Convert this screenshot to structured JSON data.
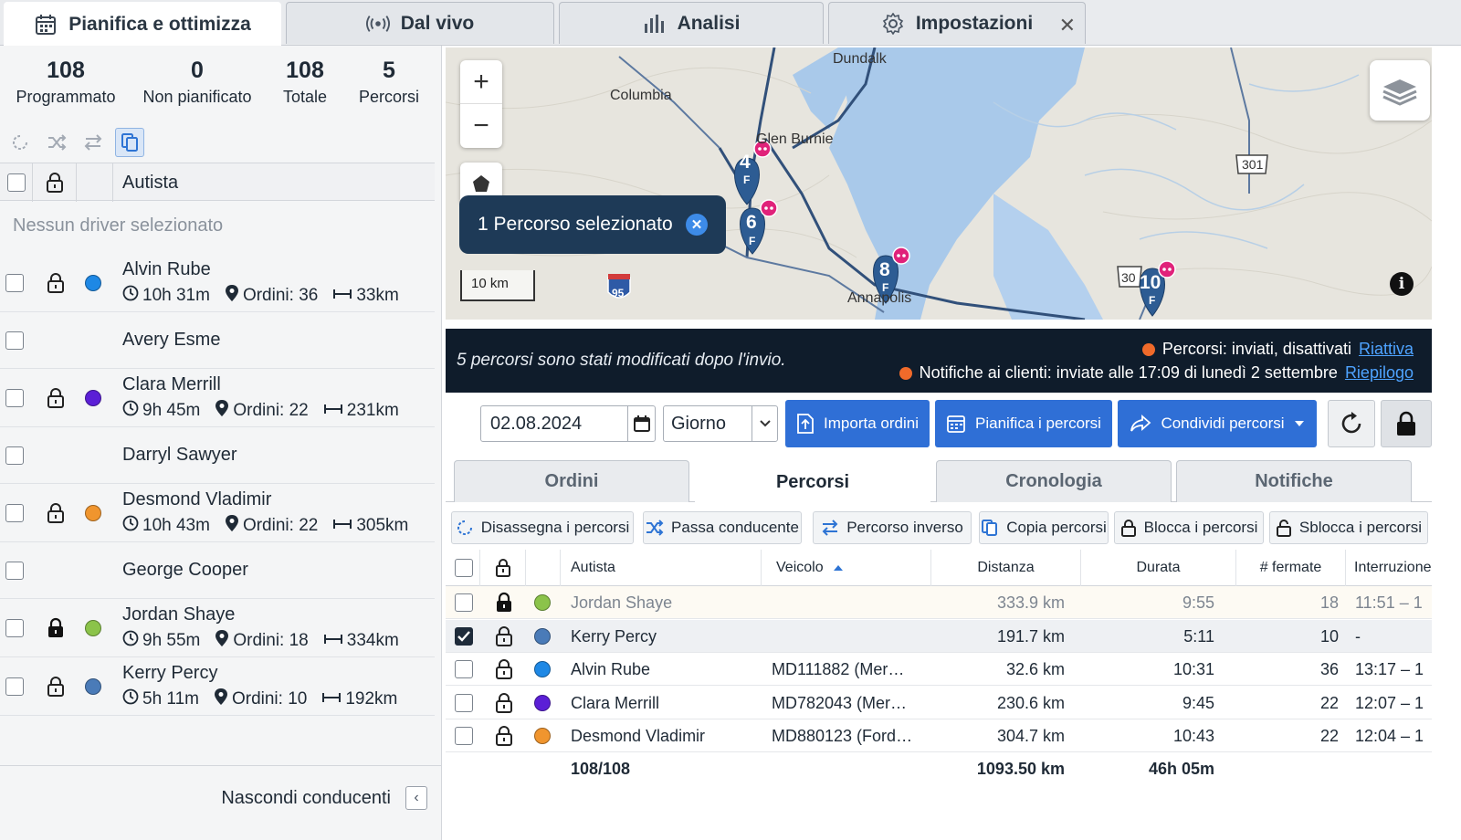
{
  "tabs": [
    {
      "label": "Pianifica e ottimizza",
      "icon": "calendar-icon",
      "active": true
    },
    {
      "label": "Dal vivo",
      "icon": "broadcast-icon",
      "active": false
    },
    {
      "label": "Analisi",
      "icon": "bar-chart-icon",
      "active": false
    },
    {
      "label": "Impostazioni",
      "icon": "gear-icon",
      "active": false,
      "close": "✕"
    }
  ],
  "stats": [
    {
      "value": "108",
      "label": "Programmato"
    },
    {
      "value": "0",
      "label": "Non pianificato"
    },
    {
      "value": "108",
      "label": "Totale"
    },
    {
      "value": "5",
      "label": "Percorsi"
    }
  ],
  "driver_list": {
    "header": "Autista",
    "empty_text": "Nessun driver selezionato",
    "hide_label": "Nascondi conducenti",
    "hide_icon": "‹",
    "drivers": [
      {
        "name": "Alvin Rube",
        "time": "10h 31m",
        "orders": "Ordini: 36",
        "distance": "33km",
        "color": "#1e88e5",
        "locked": false
      },
      {
        "name": "Avery Esme"
      },
      {
        "name": "Clara Merrill",
        "time": "9h 45m",
        "orders": "Ordini: 22",
        "distance": "231km",
        "color": "#5b1fd6",
        "locked": false
      },
      {
        "name": "Darryl Sawyer"
      },
      {
        "name": "Desmond Vladimir",
        "time": "10h 43m",
        "orders": "Ordini: 22",
        "distance": "305km",
        "color": "#f0952e",
        "locked": false
      },
      {
        "name": "George Cooper"
      },
      {
        "name": "Jordan Shaye",
        "time": "9h 55m",
        "orders": "Ordini: 18",
        "distance": "334km",
        "color": "#8bc34a",
        "locked": true
      },
      {
        "name": "Kerry Percy",
        "time": "5h 11m",
        "orders": "Ordini: 10",
        "distance": "192km",
        "color": "#4a7bb8",
        "locked": false
      }
    ]
  },
  "map": {
    "zoom_in": "+",
    "zoom_out": "−",
    "selection": "1 Percorso selezionato",
    "selection_close": "✕",
    "scale": "10 km",
    "info": "i",
    "labels": [
      "Dundalk",
      "Columbia",
      "Glen Burnie",
      "Annapolis"
    ],
    "shields": [
      "95",
      "301",
      "30"
    ],
    "markers": [
      {
        "number": "4",
        "sub": "F"
      },
      {
        "number": "6",
        "sub": "F"
      },
      {
        "number": "8",
        "sub": "F"
      },
      {
        "number": "10",
        "sub": "F"
      }
    ]
  },
  "notice": {
    "message": "5 percorsi sono stati modificati dopo l'invio.",
    "line1_text": "Percorsi: inviati, disattivati",
    "line1_link": "Riattiva",
    "line2_text": "Notifiche ai clienti: inviate alle 17:09 di lunedì 2 settembre",
    "line2_link": "Riepilogo",
    "status_color": "#f06a2a"
  },
  "controls": {
    "date": "02.08.2024",
    "period": "Giorno",
    "import_label": "Importa ordini",
    "plan_label": "Pianifica i percorsi",
    "share_label": "Condividi percorsi"
  },
  "subtabs": [
    {
      "label": "Ordini",
      "active": false
    },
    {
      "label": "Percorsi",
      "active": true
    },
    {
      "label": "Cronologia",
      "active": false
    },
    {
      "label": "Notifiche",
      "active": false
    }
  ],
  "actions": [
    {
      "label": "Disassegna i percorsi",
      "icon": "unassign-icon"
    },
    {
      "label": "Passa conducente",
      "icon": "shuffle-icon"
    },
    {
      "label": "Percorso inverso",
      "icon": "swap-icon"
    },
    {
      "label": "Copia percorsi",
      "icon": "copy-icon"
    },
    {
      "label": "Blocca i percorsi",
      "icon": "lock-icon"
    },
    {
      "label": "Sblocca i percorsi",
      "icon": "unlock-icon"
    }
  ],
  "table": {
    "headers": {
      "driver": "Autista",
      "vehicle": "Veicolo",
      "distance": "Distanza",
      "duration": "Durata",
      "stops": "# fermate",
      "break": "Interruzione"
    },
    "rows": [
      {
        "driver": "Jordan Shaye",
        "vehicle": "",
        "distance": "333.9 km",
        "duration": "9:55",
        "stops": "18",
        "break": "11:51 – 1",
        "color": "#8bc34a",
        "locked": true,
        "checked": false,
        "style": "muted"
      },
      {
        "driver": "Kerry Percy",
        "vehicle": "",
        "distance": "191.7 km",
        "duration": "5:11",
        "stops": "10",
        "break": "-",
        "color": "#4a7bb8",
        "locked": false,
        "checked": true,
        "style": "sel"
      },
      {
        "driver": "Alvin Rube",
        "vehicle": "MD111882 (Mer…",
        "distance": "32.6 km",
        "duration": "10:31",
        "stops": "36",
        "break": "13:17 – 1",
        "color": "#1e88e5",
        "locked": false,
        "checked": false,
        "style": ""
      },
      {
        "driver": "Clara Merrill",
        "vehicle": "MD782043 (Mer…",
        "distance": "230.6 km",
        "duration": "9:45",
        "stops": "22",
        "break": "12:07 – 1",
        "color": "#5b1fd6",
        "locked": false,
        "checked": false,
        "style": ""
      },
      {
        "driver": "Desmond Vladimir",
        "vehicle": "MD880123 (Ford…",
        "distance": "304.7 km",
        "duration": "10:43",
        "stops": "22",
        "break": "12:04 – 1",
        "color": "#f0952e",
        "locked": false,
        "checked": false,
        "style": ""
      }
    ],
    "totals": {
      "orders": "108/108",
      "distance": "1093.50 km",
      "duration": "46h 05m"
    }
  }
}
